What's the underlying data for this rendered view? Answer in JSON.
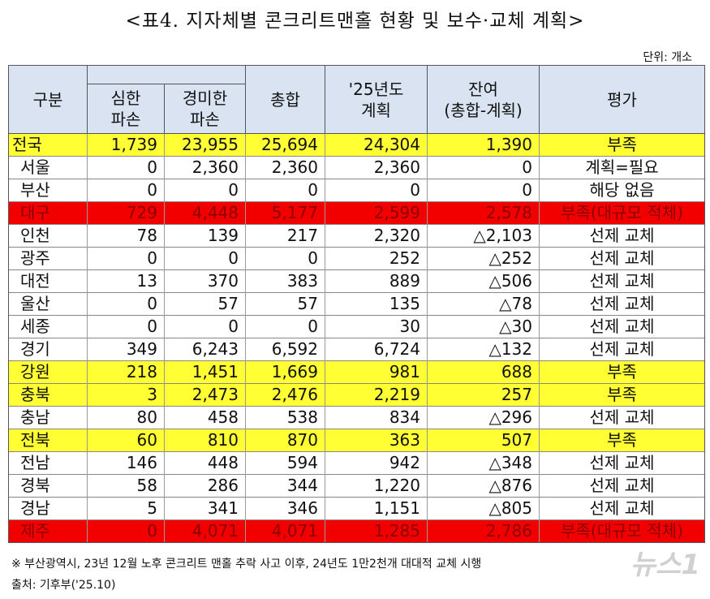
{
  "title": "<표4. 지자체별 콘크리트맨홀 현황 및 보수·교체 계획>",
  "unit": "단위: 개소",
  "headers": {
    "category": "구분",
    "severe": "심한\n파손",
    "minor": "경미한\n파손",
    "total": "총합",
    "plan": "'25년도\n계획",
    "remaining": "잔여\n(총합-계획)",
    "evaluation": "평가"
  },
  "rows": [
    {
      "name": "전국",
      "severe": "1,739",
      "minor": "23,955",
      "total": "25,694",
      "plan": "24,304",
      "remaining": "1,390",
      "eval": "부족",
      "style": "yellow"
    },
    {
      "name": "서울",
      "severe": "0",
      "minor": "2,360",
      "total": "2,360",
      "plan": "2,360",
      "remaining": "0",
      "eval": "계획=필요",
      "style": ""
    },
    {
      "name": "부산",
      "severe": "0",
      "minor": "0",
      "total": "0",
      "plan": "0",
      "remaining": "0",
      "eval": "해당 없음",
      "style": ""
    },
    {
      "name": "대구",
      "severe": "729",
      "minor": "4,448",
      "total": "5,177",
      "plan": "2,599",
      "remaining": "2,578",
      "eval": "부족(대규모 적체)",
      "style": "red"
    },
    {
      "name": "인천",
      "severe": "78",
      "minor": "139",
      "total": "217",
      "plan": "2,320",
      "remaining": "△2,103",
      "eval": "선제 교체",
      "style": ""
    },
    {
      "name": "광주",
      "severe": "0",
      "minor": "0",
      "total": "0",
      "plan": "252",
      "remaining": "△252",
      "eval": "선제 교체",
      "style": ""
    },
    {
      "name": "대전",
      "severe": "13",
      "minor": "370",
      "total": "383",
      "plan": "889",
      "remaining": "△506",
      "eval": "선제 교체",
      "style": ""
    },
    {
      "name": "울산",
      "severe": "0",
      "minor": "57",
      "total": "57",
      "plan": "135",
      "remaining": "△78",
      "eval": "선제 교체",
      "style": ""
    },
    {
      "name": "세종",
      "severe": "0",
      "minor": "0",
      "total": "0",
      "plan": "30",
      "remaining": "△30",
      "eval": "선제 교체",
      "style": ""
    },
    {
      "name": "경기",
      "severe": "349",
      "minor": "6,243",
      "total": "6,592",
      "plan": "6,724",
      "remaining": "△132",
      "eval": "선제 교체",
      "style": ""
    },
    {
      "name": "강원",
      "severe": "218",
      "minor": "1,451",
      "total": "1,669",
      "plan": "981",
      "remaining": "688",
      "eval": "부족",
      "style": "yellow"
    },
    {
      "name": "충북",
      "severe": "3",
      "minor": "2,473",
      "total": "2,476",
      "plan": "2,219",
      "remaining": "257",
      "eval": "부족",
      "style": "yellow"
    },
    {
      "name": "충남",
      "severe": "80",
      "minor": "458",
      "total": "538",
      "plan": "834",
      "remaining": "△296",
      "eval": "선제 교체",
      "style": ""
    },
    {
      "name": "전북",
      "severe": "60",
      "minor": "810",
      "total": "870",
      "plan": "363",
      "remaining": "507",
      "eval": "부족",
      "style": "yellow"
    },
    {
      "name": "전남",
      "severe": "146",
      "minor": "448",
      "total": "594",
      "plan": "942",
      "remaining": "△348",
      "eval": "선제 교체",
      "style": ""
    },
    {
      "name": "경북",
      "severe": "58",
      "minor": "286",
      "total": "344",
      "plan": "1,220",
      "remaining": "△876",
      "eval": "선제 교체",
      "style": ""
    },
    {
      "name": "경남",
      "severe": "5",
      "minor": "341",
      "total": "346",
      "plan": "1,151",
      "remaining": "△805",
      "eval": "선제 교체",
      "style": ""
    },
    {
      "name": "제주",
      "severe": "0",
      "minor": "4,071",
      "total": "4,071",
      "plan": "1,285",
      "remaining": "2,786",
      "eval": "부족(대규모 적체)",
      "style": "red"
    }
  ],
  "note": "※ 부산광역시, 23년 12월 노후 콘크리트 맨홀 추락 사고 이후, 24년도 1만2천개 대대적 교체 시행",
  "source": "출처: 기후부('25.10)",
  "watermark": "뉴스1",
  "colors": {
    "header_bg": "#d9e3f1",
    "yellow": "#ffff33",
    "red": "#f20000"
  }
}
